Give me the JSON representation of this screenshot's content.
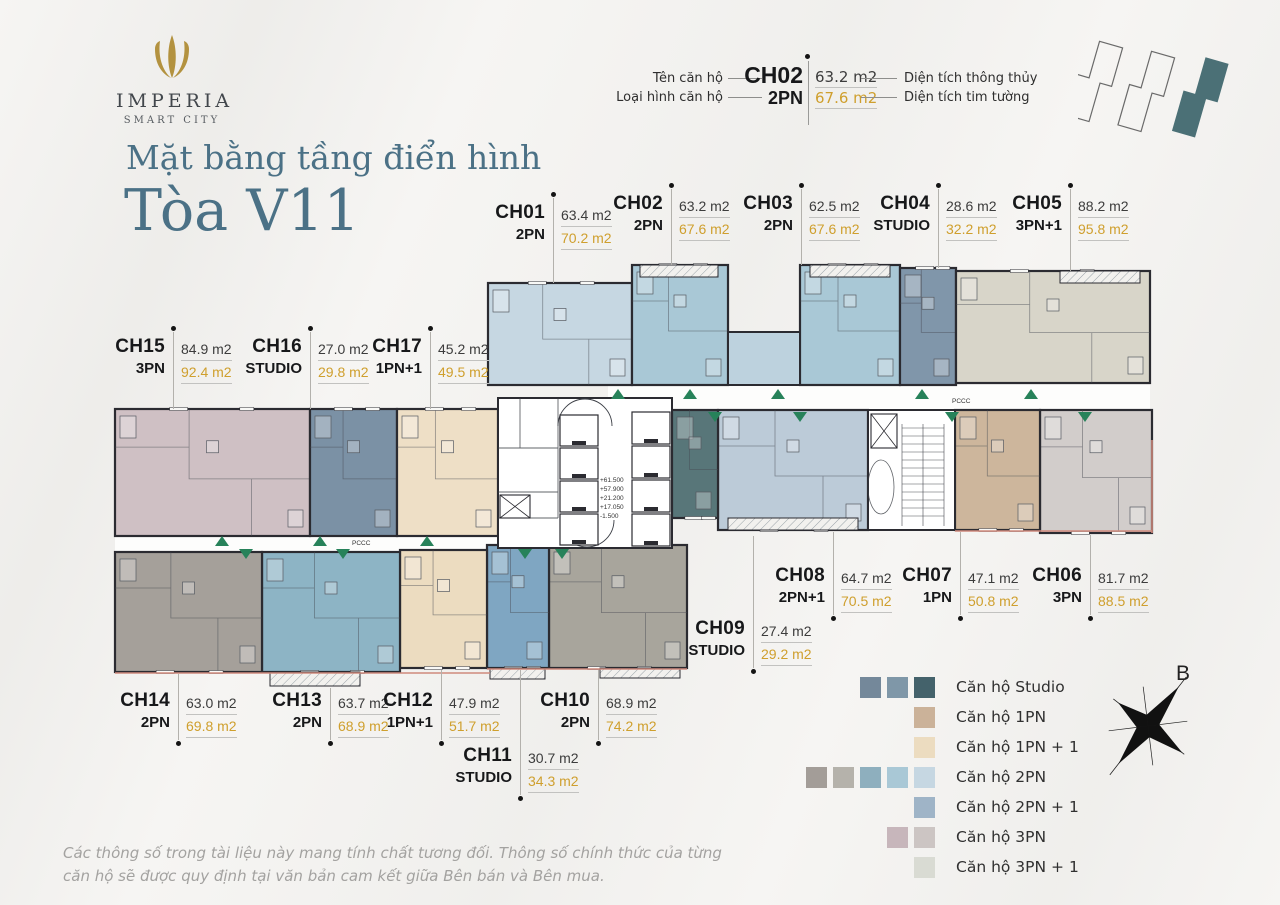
{
  "brand": {
    "name": "IMPERIA",
    "tagline": "SMART CITY"
  },
  "title": {
    "line1": "Mặt bằng tầng điển hình",
    "line2": "Tòa V11"
  },
  "key": {
    "name_label": "Tên căn hộ",
    "type_label": "Loại hình căn hộ",
    "unit": "CH02",
    "type": "2PN",
    "area_net": "63.2 m2",
    "area_gross": "67.6 m2",
    "net_label": "Diện tích thông thủy",
    "gross_label": "Diện tích tim tường"
  },
  "units": [
    {
      "id": "CH01",
      "type": "2PN",
      "area_net": "63.4 m2",
      "area_gross": "70.2 m2",
      "color": "#c6d7e2"
    },
    {
      "id": "CH02",
      "type": "2PN",
      "area_net": "63.2 m2",
      "area_gross": "67.6 m2",
      "color": "#a9c8d6"
    },
    {
      "id": "CH03",
      "type": "2PN",
      "area_net": "62.5 m2",
      "area_gross": "67.6 m2",
      "color": "#a9c8d6"
    },
    {
      "id": "CH04",
      "type": "STUDIO",
      "area_net": "28.6 m2",
      "area_gross": "32.2 m2",
      "color": "#8096aa"
    },
    {
      "id": "CH05",
      "type": "3PN+1",
      "area_net": "88.2 m2",
      "area_gross": "95.8 m2",
      "color": "#d8d5c9"
    },
    {
      "id": "CH06",
      "type": "3PN",
      "area_net": "81.7 m2",
      "area_gross": "88.5 m2",
      "color": "#d2cdcb"
    },
    {
      "id": "CH07",
      "type": "1PN",
      "area_net": "47.1 m2",
      "area_gross": "50.8 m2",
      "color": "#cdb69c"
    },
    {
      "id": "CH08",
      "type": "2PN+1",
      "area_net": "64.7 m2",
      "area_gross": "70.5 m2",
      "color": "#bccbd8"
    },
    {
      "id": "CH09",
      "type": "STUDIO",
      "area_net": "27.4 m2",
      "area_gross": "29.2 m2",
      "color": "#587679"
    },
    {
      "id": "CH10",
      "type": "2PN",
      "area_net": "68.9 m2",
      "area_gross": "74.2 m2",
      "color": "#a8a59c"
    },
    {
      "id": "CH11",
      "type": "STUDIO",
      "area_net": "30.7 m2",
      "area_gross": "34.3 m2",
      "color": "#7fa6c2"
    },
    {
      "id": "CH12",
      "type": "1PN+1",
      "area_net": "47.9 m2",
      "area_gross": "51.7 m2",
      "color": "#ecdcc0"
    },
    {
      "id": "CH13",
      "type": "2PN",
      "area_net": "63.7 m2",
      "area_gross": "68.9 m2",
      "color": "#8db4c5"
    },
    {
      "id": "CH14",
      "type": "2PN",
      "area_net": "63.0 m2",
      "area_gross": "69.8 m2",
      "color": "#a5a09a"
    },
    {
      "id": "CH15",
      "type": "3PN",
      "area_net": "84.9 m2",
      "area_gross": "92.4 m2",
      "color": "#cfc0c4"
    },
    {
      "id": "CH16",
      "type": "STUDIO",
      "area_net": "27.0 m2",
      "area_gross": "29.8 m2",
      "color": "#7b91a5"
    },
    {
      "id": "CH17",
      "type": "1PN+1",
      "area_net": "45.2 m2",
      "area_gross": "49.5 m2",
      "color": "#eedfc6"
    }
  ],
  "legend": {
    "items": [
      {
        "label": "Căn hộ Studio",
        "swatches": [
          "#74889a",
          "#7f97a8",
          "#44626b"
        ]
      },
      {
        "label": "Căn hộ 1PN",
        "swatches": [
          "#cbb299"
        ]
      },
      {
        "label": "Căn hộ 1PN + 1",
        "swatches": [
          "#ecdcc0"
        ]
      },
      {
        "label": "Căn hộ 2PN",
        "swatches": [
          "#a39d98",
          "#b5b2ab",
          "#8eafbe",
          "#a9c8d6",
          "#c6d7e2"
        ]
      },
      {
        "label": "Căn hộ 2PN + 1",
        "swatches": [
          "#9fb4c7"
        ]
      },
      {
        "label": "Căn hộ 3PN",
        "swatches": [
          "#c7b6bb",
          "#ccc5c3"
        ]
      },
      {
        "label": "Căn hộ 3PN + 1",
        "swatches": [
          "#d9dbd3"
        ]
      }
    ]
  },
  "compass": {
    "label": "B"
  },
  "plan": {
    "pccc": "PCCC",
    "levels": [
      "+61.500",
      "+57.900",
      "+21.200",
      "+17.050",
      "-1.500"
    ]
  },
  "disclaimer": "Các thông số trong tài liệu này mang tính chất tương đối. Thông số chính thức của từng căn hộ sẽ được quy định tại văn bản cam kết giữa Bên bán và Bên mua.",
  "colors": {
    "title": "#4b7186",
    "gold": "#cf9f2d",
    "green": "#27825a",
    "wall": "#2b2b31",
    "brand_gold": "#b3923f"
  }
}
